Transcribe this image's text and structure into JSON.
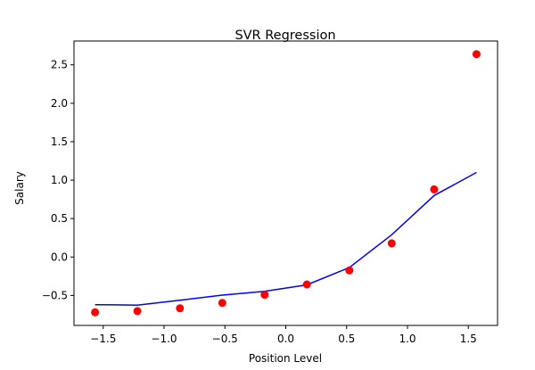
{
  "chart_data": {
    "type": "scatter",
    "title": "SVR Regression",
    "xlabel": "Position Level",
    "ylabel": "Salary",
    "xlim": [
      -1.74,
      1.74
    ],
    "ylim": [
      -0.89,
      2.81
    ],
    "xticks": [
      -1.5,
      -1.0,
      -0.5,
      0.0,
      0.5,
      1.0,
      1.5
    ],
    "xtick_labels": [
      "−1.5",
      "−1.0",
      "−0.5",
      "0.0",
      "0.5",
      "1.0",
      "1.5"
    ],
    "yticks": [
      -0.5,
      0.0,
      0.5,
      1.0,
      1.5,
      2.0,
      2.5
    ],
    "ytick_labels": [
      "−0.5",
      "0.0",
      "0.5",
      "1.0",
      "1.5",
      "2.0",
      "2.5"
    ],
    "grid": false,
    "series": [
      {
        "kind": "scatter",
        "color": "#ff0000",
        "x": [
          -1.567,
          -1.219,
          -0.87,
          -0.522,
          -0.174,
          0.174,
          0.522,
          0.87,
          1.219,
          1.567
        ],
        "y": [
          -0.72,
          -0.703,
          -0.667,
          -0.598,
          -0.491,
          -0.356,
          -0.174,
          0.178,
          0.88,
          2.64
        ]
      },
      {
        "kind": "line",
        "color": "#0000ff",
        "x": [
          -1.567,
          -1.219,
          -0.87,
          -0.522,
          -0.174,
          0.174,
          0.522,
          0.87,
          1.219,
          1.567
        ],
        "y": [
          -0.62,
          -0.626,
          -0.562,
          -0.496,
          -0.446,
          -0.362,
          -0.137,
          0.29,
          0.8,
          1.1
        ]
      }
    ]
  }
}
